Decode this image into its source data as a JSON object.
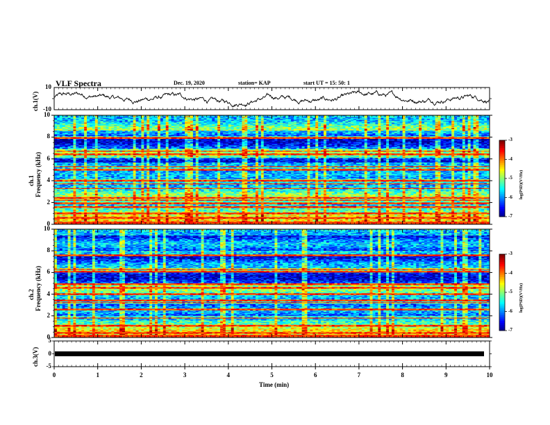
{
  "header": {
    "title": "VLF Spectra",
    "date": "Dec. 19, 2020",
    "station": "station= KAP",
    "start_ut": "start  UT  =   15: 50: 1"
  },
  "chart_data": [
    {
      "type": "line",
      "name": "ch1-waveform",
      "ylabel": "ch.1(V)",
      "ylim": [
        -10,
        10
      ],
      "yticks": [
        "10",
        "-10"
      ],
      "xlim": [
        0,
        10
      ],
      "color": "#000000"
    },
    {
      "type": "heatmap",
      "name": "ch1-spectrogram",
      "ylabel_top": "ch.1",
      "ylabel": "Frequency  (kHz)",
      "ylim": [
        0,
        10
      ],
      "yticks": [
        "0",
        "2",
        "4",
        "6",
        "8",
        "10"
      ],
      "xlim": [
        0,
        10
      ],
      "colorbar": {
        "label": "log(PSD)(V²/Hz)",
        "range": [
          -7,
          -3
        ],
        "ticks": [
          "-3",
          "-4",
          "-5",
          "-6",
          "-7"
        ]
      },
      "bright_lines_khz": [
        0.6,
        1.0,
        1.6,
        1.9,
        2.2,
        2.4,
        3.3,
        3.7,
        4.0,
        5.0,
        5.3,
        6.4,
        6.7,
        7.9
      ],
      "dark_bands_khz": [
        [
          6.9,
          7.8
        ],
        [
          5.7,
          6.1
        ],
        [
          4.2,
          4.9
        ],
        [
          8.1,
          8.6
        ]
      ]
    },
    {
      "type": "heatmap",
      "name": "ch2-spectrogram",
      "ylabel_top": "ch.2",
      "ylabel": "Frequency  (kHz)",
      "ylim": [
        0,
        10
      ],
      "yticks": [
        "0",
        "2",
        "4",
        "6",
        "8",
        "10"
      ],
      "xlim": [
        0,
        10
      ],
      "colorbar": {
        "label": "log(PSD)(V²/Hz)",
        "range": [
          -7,
          -3
        ],
        "ticks": [
          "-3",
          "-4",
          "-5",
          "-6",
          "-7"
        ]
      },
      "bright_lines_khz": [
        0.4,
        1.1,
        1.8,
        2.6,
        3.2,
        3.4,
        4.0,
        4.6,
        4.9,
        6.1,
        6.3,
        7.6
      ],
      "dark_bands_khz": [
        [
          2.0,
          3.1
        ],
        [
          6.4,
          7.5
        ],
        [
          5.0,
          6.0
        ],
        [
          8.0,
          9.4
        ]
      ]
    },
    {
      "type": "line",
      "name": "ch3-signal",
      "ylabel": "ch.3(V)",
      "ylim": [
        -5,
        5
      ],
      "yticks": [
        "5",
        "0",
        "-5"
      ],
      "xlim": [
        0,
        10
      ],
      "level_v": 0,
      "color": "#000000"
    }
  ],
  "xaxis": {
    "label": "Time  (min)",
    "ticks": [
      "0",
      "1",
      "2",
      "3",
      "4",
      "5",
      "6",
      "7",
      "8",
      "9",
      "10"
    ]
  }
}
